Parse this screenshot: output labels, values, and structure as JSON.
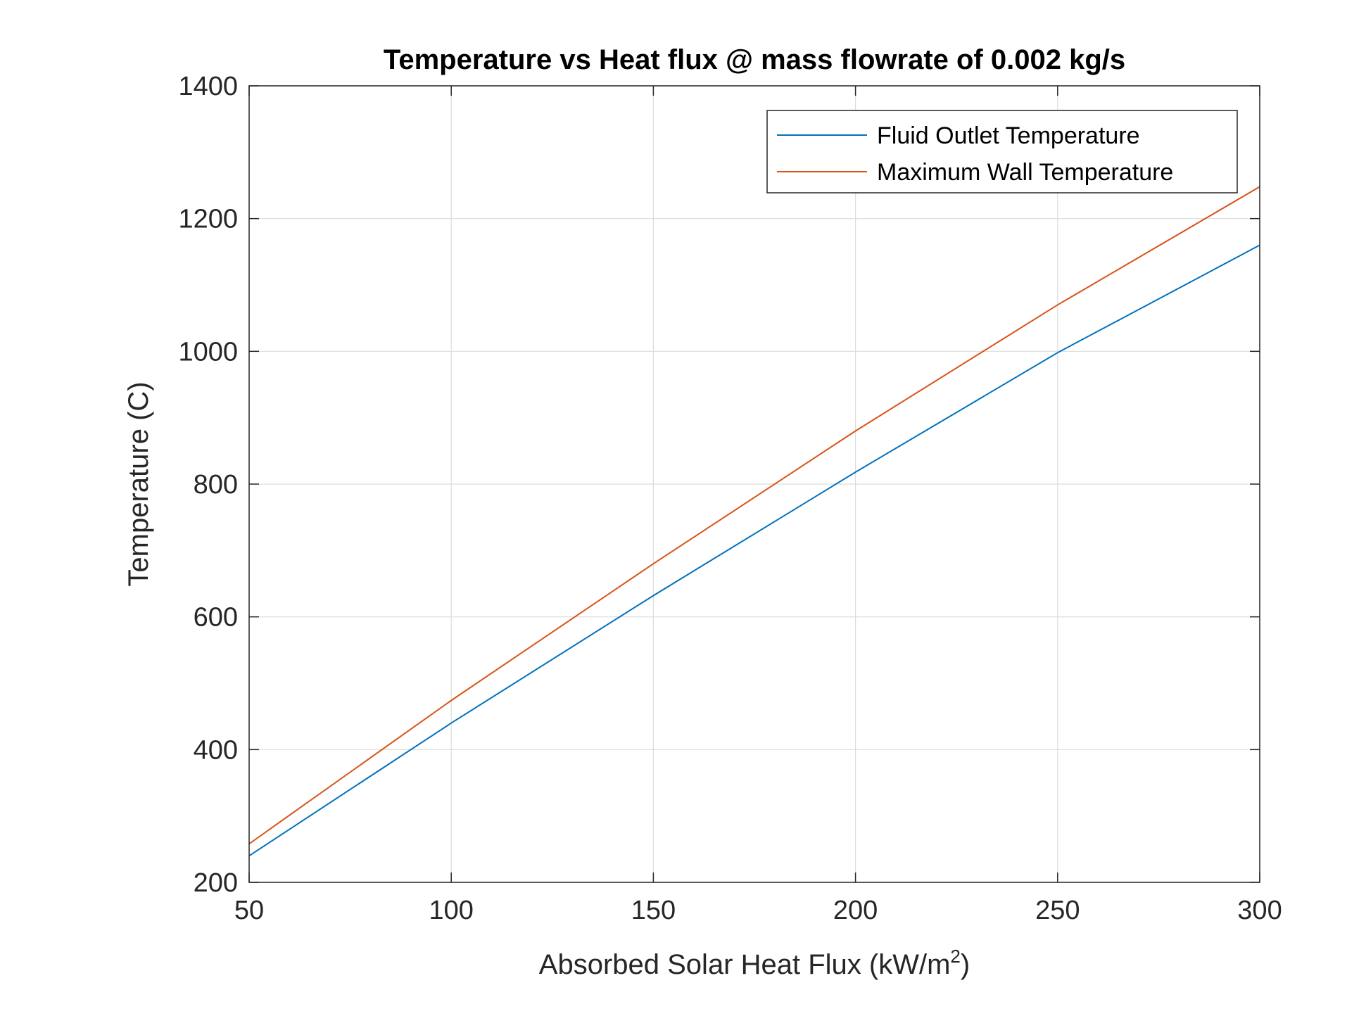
{
  "chart_data": {
    "type": "line",
    "title": "Temperature vs Heat flux @ mass flowrate of 0.002 kg/s",
    "xlabel": "Absorbed Solar Heat Flux (kW/m",
    "xlabel_superscript": "2",
    "xlabel_suffix": ")",
    "ylabel": "Temperature (C)",
    "xlim": [
      50,
      300
    ],
    "ylim": [
      200,
      1400
    ],
    "xticks": [
      50,
      100,
      150,
      200,
      250,
      300
    ],
    "yticks": [
      200,
      400,
      600,
      800,
      1000,
      1200,
      1400
    ],
    "xtick_labels": [
      "50",
      "100",
      "150",
      "200",
      "250",
      "300"
    ],
    "ytick_labels": [
      "200",
      "400",
      "600",
      "800",
      "1000",
      "1200",
      "1400"
    ],
    "grid": true,
    "legend_position": "top-right",
    "x": [
      50,
      100,
      150,
      200,
      250,
      300
    ],
    "series": [
      {
        "name": "Fluid Outlet Temperature",
        "color": "#0072BD",
        "values": [
          240,
          440,
          632,
          818,
          998,
          1160
        ]
      },
      {
        "name": "Maximum Wall Temperature",
        "color": "#D95319",
        "values": [
          258,
          474,
          680,
          880,
          1070,
          1248
        ]
      }
    ]
  }
}
